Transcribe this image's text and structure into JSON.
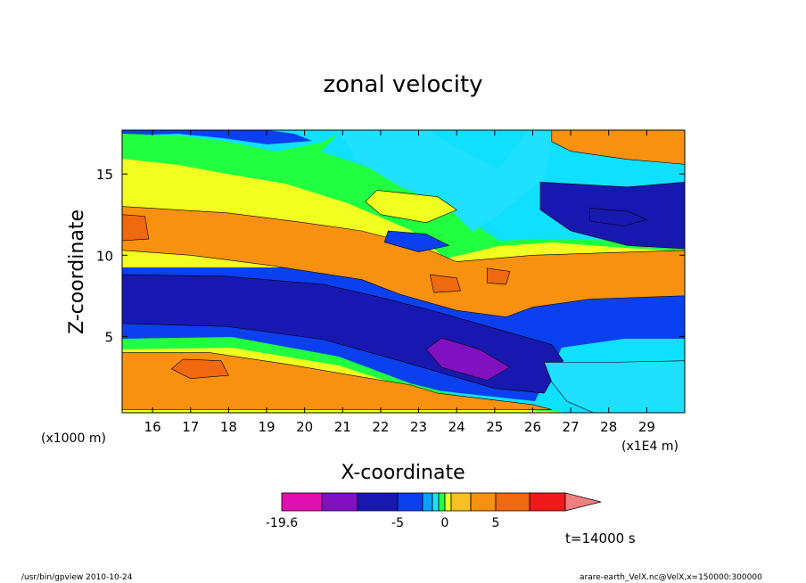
{
  "chart_data": {
    "type": "heatmap",
    "title": "zonal velocity",
    "xlabel": "X-coordinate",
    "ylabel": "Z-coordinate",
    "x_scale_note": "(x1E4 m)",
    "y_scale_note": "(x1000 m)",
    "x_ticks": [
      16,
      17,
      18,
      19,
      20,
      21,
      22,
      23,
      24,
      25,
      26,
      27,
      28,
      29
    ],
    "y_ticks": [
      5,
      10,
      15
    ],
    "xlim": [
      15.2,
      30.0
    ],
    "ylim": [
      0.3,
      17.7
    ],
    "colorbar": {
      "levels": [
        -19.6,
        -15,
        -10,
        -5,
        -3,
        -2,
        -1,
        0,
        1,
        2,
        5,
        10,
        15,
        20
      ],
      "colors": [
        "#e010b0",
        "#8010c0",
        "#1818b0",
        "#0a40f0",
        "#0aa0ff",
        "#20e0ff",
        "#20ff40",
        "#f0ff20",
        "#f8c020",
        "#f89010",
        "#f06810",
        "#f01818",
        "#f08080"
      ],
      "tick_labels": [
        "-19.6",
        "-5",
        "0",
        "5"
      ],
      "extend": "max"
    },
    "regions": [
      {
        "level": "-5",
        "color": "#1818b0",
        "points": [
          [
            15.2,
            8.8
          ],
          [
            18,
            8.7
          ],
          [
            20.5,
            8.2
          ],
          [
            22,
            7.4
          ],
          [
            23.5,
            6.5
          ],
          [
            25,
            5.5
          ],
          [
            26.5,
            4.5
          ],
          [
            26.8,
            3.5
          ],
          [
            26.3,
            1.5
          ],
          [
            25,
            1.8
          ],
          [
            22.5,
            3.5
          ],
          [
            20.5,
            4.8
          ],
          [
            18,
            5.6
          ],
          [
            15.2,
            5.8
          ]
        ]
      },
      {
        "level": "-15",
        "color": "#8010c0",
        "points": [
          [
            23.6,
            4.9
          ],
          [
            24.6,
            4.2
          ],
          [
            25.4,
            3.1
          ],
          [
            24.8,
            2.3
          ],
          [
            23.6,
            3.1
          ],
          [
            23.2,
            4.2
          ]
        ]
      },
      {
        "level": "2",
        "color": "#f89010",
        "points": [
          [
            15.2,
            13
          ],
          [
            18,
            12.6
          ],
          [
            20,
            12
          ],
          [
            21.5,
            11.5
          ],
          [
            23,
            10.6
          ],
          [
            24,
            9.6
          ],
          [
            26,
            10
          ],
          [
            30,
            10.3
          ],
          [
            30,
            7.5
          ],
          [
            27.5,
            7.3
          ],
          [
            26,
            6.8
          ],
          [
            25.3,
            6.2
          ],
          [
            24,
            6.6
          ],
          [
            22.5,
            7.6
          ],
          [
            21.5,
            8.5
          ],
          [
            19,
            9.4
          ],
          [
            17,
            10
          ],
          [
            15.2,
            10.3
          ]
        ]
      },
      {
        "level": "5",
        "color": "#f06810",
        "points": [
          [
            15.2,
            12.5
          ],
          [
            15.8,
            12.4
          ],
          [
            15.9,
            11
          ],
          [
            15.2,
            10.9
          ]
        ]
      },
      {
        "level": "5",
        "color": "#f06810",
        "points": [
          [
            23.3,
            8.8
          ],
          [
            24.0,
            8.6
          ],
          [
            24.1,
            7.8
          ],
          [
            23.4,
            7.7
          ]
        ]
      },
      {
        "level": "5",
        "color": "#f06810",
        "points": [
          [
            24.8,
            9.2
          ],
          [
            25.4,
            9.0
          ],
          [
            25.3,
            8.2
          ],
          [
            24.8,
            8.3
          ]
        ]
      },
      {
        "level": "2",
        "color": "#f89010",
        "points": [
          [
            15.2,
            4.0
          ],
          [
            17.5,
            4.0
          ],
          [
            19.5,
            3.3
          ],
          [
            21.5,
            2.5
          ],
          [
            22.8,
            2.0
          ],
          [
            23.5,
            1.5
          ],
          [
            26.0,
            0.8
          ],
          [
            26.5,
            0.5
          ],
          [
            15.2,
            0.5
          ]
        ]
      },
      {
        "level": "5",
        "color": "#f06810",
        "points": [
          [
            16.8,
            3.6
          ],
          [
            17.8,
            3.5
          ],
          [
            18.0,
            2.6
          ],
          [
            17.0,
            2.4
          ],
          [
            16.5,
            3.0
          ]
        ]
      },
      {
        "level": "-5",
        "color": "#1818b0",
        "points": [
          [
            26.2,
            14.5
          ],
          [
            28.5,
            14.2
          ],
          [
            30,
            14.5
          ],
          [
            30,
            10.4
          ],
          [
            28.5,
            10.6
          ],
          [
            27,
            11.5
          ],
          [
            26.2,
            12.8
          ]
        ]
      },
      {
        "level": "-10",
        "color": "#1818b0",
        "points": [
          [
            27.5,
            12.9
          ],
          [
            28.5,
            12.7
          ],
          [
            29,
            12.2
          ],
          [
            28.4,
            11.8
          ],
          [
            27.5,
            12.1
          ]
        ]
      },
      {
        "level": "2",
        "color": "#f89010",
        "points": [
          [
            26.5,
            17.7
          ],
          [
            30,
            17.7
          ],
          [
            30,
            15.6
          ],
          [
            28.5,
            15.9
          ],
          [
            27,
            16.4
          ],
          [
            26.5,
            17.0
          ]
        ]
      },
      {
        "level": "-1",
        "color": "#20e0ff",
        "points": [
          [
            26.3,
            3.4
          ],
          [
            28,
            3.4
          ],
          [
            30,
            3.5
          ],
          [
            30,
            0.3
          ],
          [
            27.6,
            0.3
          ],
          [
            26.9,
            1.0
          ],
          [
            26.5,
            2.2
          ]
        ]
      },
      {
        "level": "1",
        "color": "#f0ff20",
        "points": [
          [
            21.9,
            14.0
          ],
          [
            23.5,
            13.6
          ],
          [
            24.0,
            12.8
          ],
          [
            23.2,
            12.0
          ],
          [
            22.0,
            12.5
          ],
          [
            21.6,
            13.3
          ]
        ]
      },
      {
        "level": "-3",
        "color": "#0a40f0",
        "points": [
          [
            22.2,
            11.5
          ],
          [
            23.2,
            11.3
          ],
          [
            23.8,
            10.6
          ],
          [
            23.0,
            10.2
          ],
          [
            22.1,
            10.8
          ]
        ]
      }
    ]
  },
  "footer": {
    "left": "/usr/bin/gpview   2010-10-24",
    "right": "arare-earth_VelX.nc@VelX,x=150000:300000",
    "time": "t=14000 s"
  }
}
